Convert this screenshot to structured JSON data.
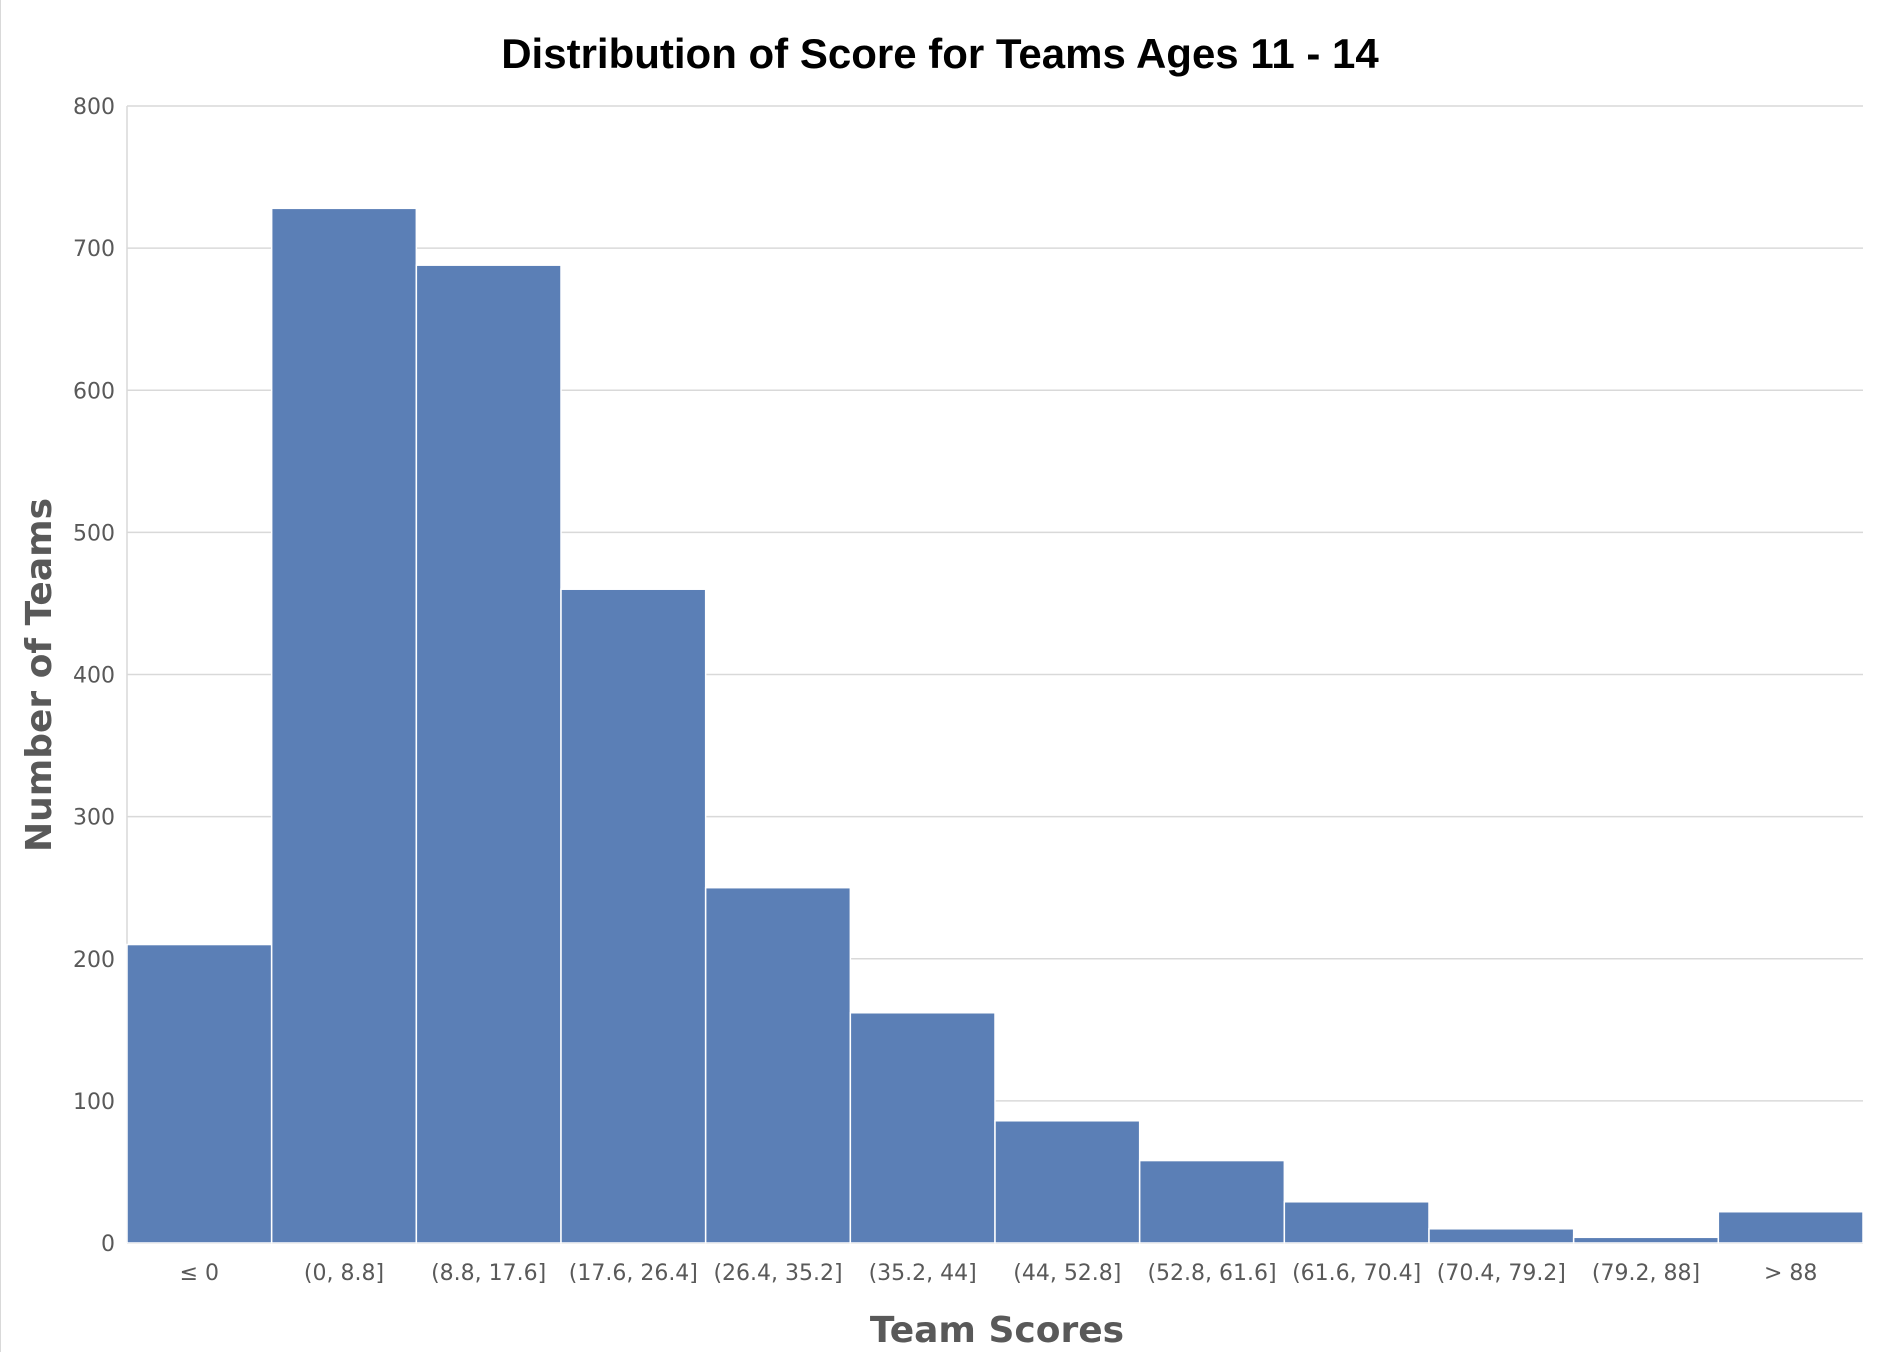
{
  "chart_data": {
    "type": "bar",
    "title": "Distribution of Score for Teams Ages 11 - 14",
    "xlabel": "Team Scores",
    "ylabel": "Number of Teams",
    "categories": [
      "≤ 0",
      "(0, 8.8]",
      "(8.8, 17.6]",
      "(17.6, 26.4]",
      "(26.4, 35.2]",
      "(35.2, 44]",
      "(44, 52.8]",
      "(52.8, 61.6]",
      "(61.6, 70.4]",
      "(70.4, 79.2]",
      "(79.2, 88]",
      "> 88"
    ],
    "values": [
      210,
      728,
      688,
      460,
      250,
      162,
      86,
      58,
      29,
      10,
      4,
      22
    ],
    "ylim": [
      0,
      800
    ],
    "yticks": [
      0,
      100,
      200,
      300,
      400,
      500,
      600,
      700,
      800
    ],
    "grid": true,
    "legend": "none",
    "bar_color": "#5b7fb6",
    "grid_color": "#d9d9d9"
  }
}
